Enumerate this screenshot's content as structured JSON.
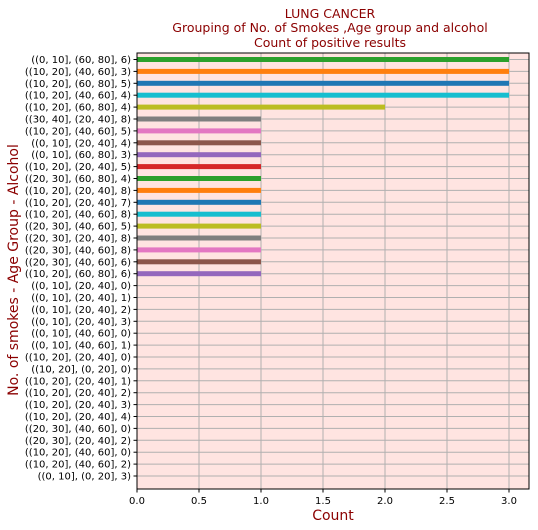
{
  "chart_data": {
    "type": "bar",
    "orientation": "horizontal",
    "title_lines": [
      "LUNG CANCER",
      "Grouping of No. of Smokes ,Age group and alcohol",
      "Count of positive results"
    ],
    "xlabel": "Count",
    "ylabel": "No. of smokes - Age Group - Alcohol",
    "xlim": [
      0,
      3.15
    ],
    "xticks": [
      "0.0",
      "0.5",
      "1.0",
      "1.5",
      "2.0",
      "2.5",
      "3.0"
    ],
    "grid": true,
    "background_color": "#ffe4e1",
    "grid_color": "#b0b0b0",
    "palette": [
      "#2ca02c",
      "#ff7f0e",
      "#1f77b4",
      "#17becf",
      "#bcbd22",
      "#7f7f7f",
      "#e377c2",
      "#8c564b",
      "#9467bd",
      "#d62728"
    ],
    "categories": [
      "((0, 10], (60, 80], 6)",
      "((10, 20], (40, 60], 3)",
      "((10, 20], (60, 80], 5)",
      "((10, 20], (40, 60], 4)",
      "((10, 20], (60, 80], 4)",
      "((30, 40], (20, 40], 8)",
      "((10, 20], (40, 60], 5)",
      "((0, 10], (20, 40], 4)",
      "((0, 10], (60, 80], 3)",
      "((10, 20], (20, 40], 5)",
      "((20, 30], (60, 80], 4)",
      "((10, 20], (20, 40], 8)",
      "((10, 20], (20, 40], 7)",
      "((10, 20], (40, 60], 8)",
      "((20, 30], (40, 60], 5)",
      "((20, 30], (20, 40], 8)",
      "((20, 30], (40, 60], 8)",
      "((20, 30], (40, 60], 6)",
      "((10, 20], (60, 80], 6)",
      "((0, 10], (20, 40], 0)",
      "((0, 10], (20, 40], 1)",
      "((0, 10], (20, 40], 2)",
      "((0, 10], (20, 40], 3)",
      "((0, 10], (40, 60], 0)",
      "((0, 10], (40, 60], 1)",
      "((10, 20], (20, 40], 0)",
      "((10, 20], (0, 20], 0)",
      "((10, 20], (20, 40], 1)",
      "((10, 20], (20, 40], 2)",
      "((10, 20], (20, 40], 3)",
      "((10, 20], (20, 40], 4)",
      "((20, 30], (40, 60], 0)",
      "((20, 30], (20, 40], 2)",
      "((10, 20], (40, 60], 0)",
      "((10, 20], (40, 60], 2)",
      "((0, 10], (0, 20], 3)"
    ],
    "values": [
      3,
      3,
      3,
      3,
      2,
      1,
      1,
      1,
      1,
      1,
      1,
      1,
      1,
      1,
      1,
      1,
      1,
      1,
      1,
      0,
      0,
      0,
      0,
      0,
      0,
      0,
      0,
      0,
      0,
      0,
      0,
      0,
      0,
      0,
      0,
      0
    ]
  }
}
